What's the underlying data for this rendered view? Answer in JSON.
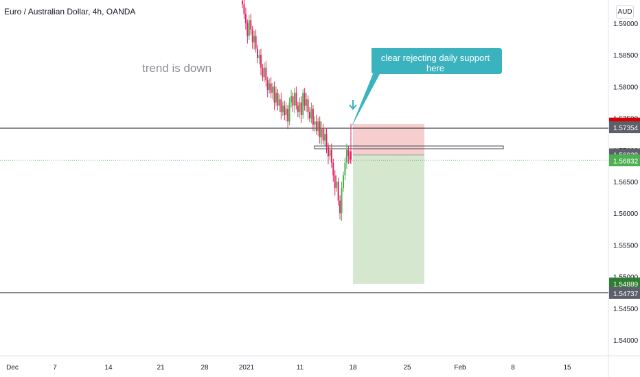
{
  "chart_data": {
    "type": "candlestick",
    "title": "Euro / Australian Dollar, 4h, OANDA",
    "currency": "AUD",
    "annotation": "trend is down",
    "callout": "clear rejecting daily support here",
    "y_ticks": [
      "1.59000",
      "1.58500",
      "1.58000",
      "1.57500",
      "1.57000",
      "1.56500",
      "1.56000",
      "1.55500",
      "1.55000",
      "1.54500",
      "1.54000"
    ],
    "y_range": [
      1.5372,
      1.5924
    ],
    "x_ticks": [
      "Dec",
      "7",
      "14",
      "21",
      "28",
      "2021",
      "11",
      "18",
      "25",
      "Feb",
      "8",
      "15"
    ],
    "price_labels": [
      {
        "text": "1.57413",
        "value": 1.57413,
        "color": "#d50000"
      },
      {
        "text": "1.57354",
        "value": 1.57354,
        "color": "#5d606b"
      },
      {
        "text": "1.56928",
        "value": 1.56928,
        "color": "#5d606b"
      },
      {
        "text": "1.56832",
        "value": 1.56832,
        "color": "#4caf50"
      },
      {
        "text": "1.54889",
        "value": 1.54889,
        "color": "#2e7d32"
      },
      {
        "text": "1.54737",
        "value": 1.54737,
        "color": "#5d606b"
      }
    ],
    "horizontal_lines": [
      {
        "value": 1.57413,
        "color": "#131722"
      },
      {
        "value": 1.54737,
        "color": "#131722"
      }
    ],
    "current_price": 1.56832,
    "position": {
      "entry": 1.56928,
      "stop": 1.57413,
      "target": 1.54889
    },
    "colors": {
      "up": "#26a69a",
      "down": "#ef5350",
      "upCandle": "#4caf50",
      "downCandle": "#e91e63",
      "callout": "#3bb3bf"
    }
  }
}
